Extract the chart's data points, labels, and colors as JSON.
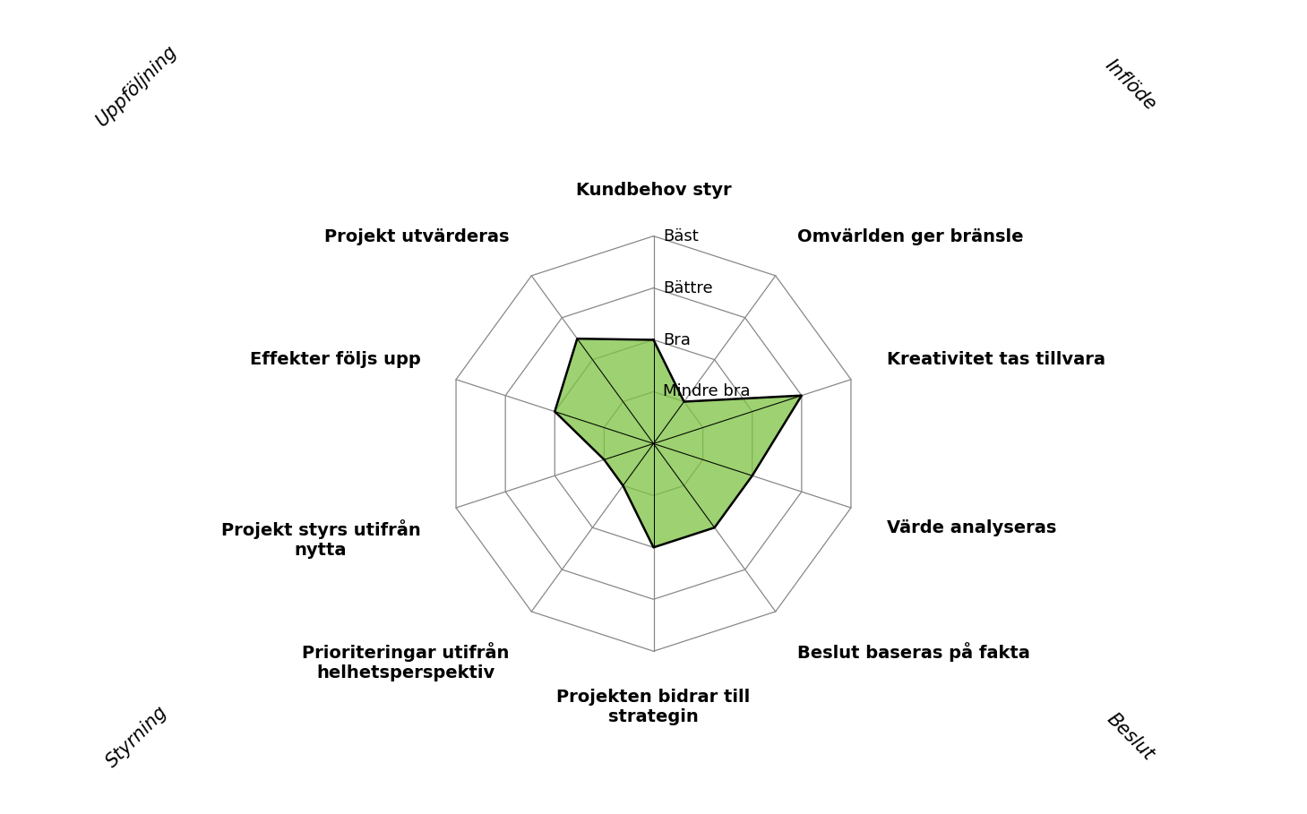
{
  "axes": [
    "Kundbehov styr",
    "Omvärlden ger bränsle",
    "Kreativitet tas tillvara",
    "Värde analyseras",
    "Beslut baseras på fakta",
    "Projekten bidrar till\nstrategin",
    "Prioriteringar utifrån\nhelhetsperspektiv",
    "Projekt styrs utifrån\nnytta",
    "Effekter följs upp",
    "Projekt utvärderas"
  ],
  "values": [
    2.0,
    1.0,
    3.0,
    2.0,
    2.0,
    2.0,
    1.0,
    1.0,
    2.0,
    2.5
  ],
  "levels": [
    1,
    2,
    3,
    4
  ],
  "level_labels": [
    "Mindre bra",
    "Bra",
    "Bättre",
    "Bäst"
  ],
  "fill_color": "#7DC242",
  "fill_alpha": 0.75,
  "edge_color": "#000000",
  "grid_color": "#888888",
  "background_color": "#FFFFFF",
  "section_labels": [
    {
      "text": "Inflöde",
      "fx": 0.865,
      "fy": 0.895,
      "rot": -45
    },
    {
      "text": "Uppföljning",
      "fx": 0.105,
      "fy": 0.895,
      "rot": 45
    },
    {
      "text": "Styrning",
      "fx": 0.105,
      "fy": 0.095,
      "rot": 45
    },
    {
      "text": "Beslut",
      "fx": 0.865,
      "fy": 0.095,
      "rot": -45
    }
  ],
  "label_fontsize": 14,
  "section_fontsize": 15,
  "level_label_fontsize": 13,
  "max_val": 4,
  "radar_scale": 0.85
}
